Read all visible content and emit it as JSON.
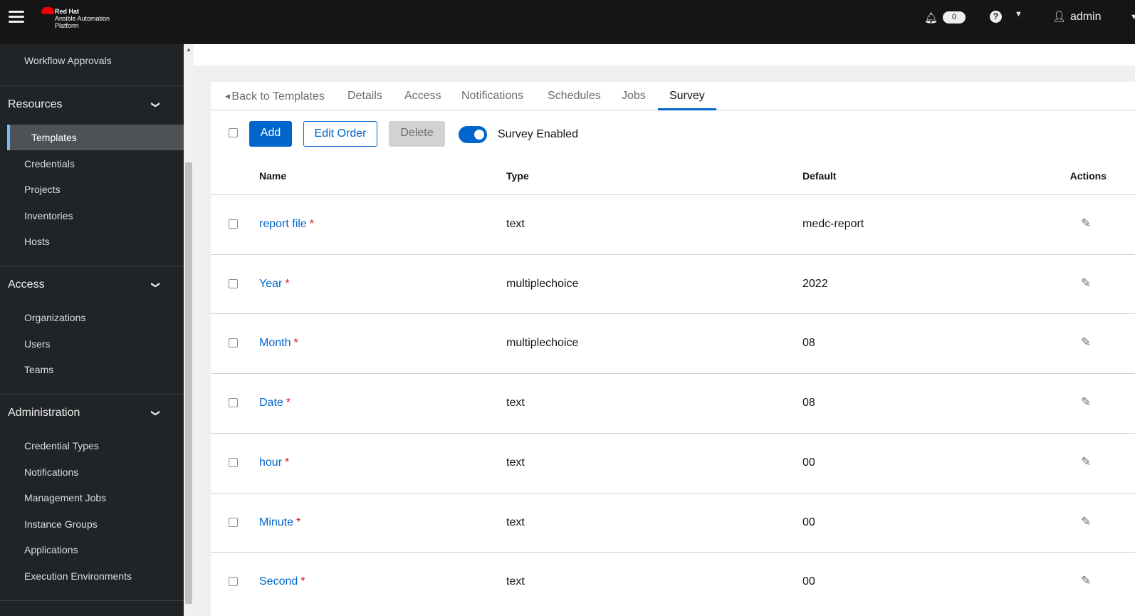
{
  "header": {
    "brand_line1": "Red Hat",
    "brand_line2": "Ansible Automation Platform",
    "notifications_count": "0",
    "user": "admin"
  },
  "sidebar": {
    "top_item": "Workflow Approvals",
    "groups": [
      {
        "label": "Resources",
        "items": [
          "Templates",
          "Credentials",
          "Projects",
          "Inventories",
          "Hosts"
        ]
      },
      {
        "label": "Access",
        "items": [
          "Organizations",
          "Users",
          "Teams"
        ]
      },
      {
        "label": "Administration",
        "items": [
          "Credential Types",
          "Notifications",
          "Management Jobs",
          "Instance Groups",
          "Applications",
          "Execution Environments"
        ]
      }
    ],
    "active": "Templates"
  },
  "tabs": [
    "Back to Templates",
    "Details",
    "Access",
    "Notifications",
    "Schedules",
    "Jobs",
    "Survey"
  ],
  "active_tab": "Survey",
  "toolbar": {
    "add": "Add",
    "edit_order": "Edit Order",
    "delete": "Delete",
    "survey_enabled_label": "Survey Enabled",
    "survey_enabled": true
  },
  "table": {
    "columns": [
      "Name",
      "Type",
      "Default",
      "Actions"
    ],
    "rows": [
      {
        "name": "report file",
        "type": "text",
        "default": "medc-report",
        "required": true
      },
      {
        "name": "Year",
        "type": "multiplechoice",
        "default": "2022",
        "required": true
      },
      {
        "name": "Month",
        "type": "multiplechoice",
        "default": "08",
        "required": true
      },
      {
        "name": "Date",
        "type": "text",
        "default": "08",
        "required": true
      },
      {
        "name": "hour",
        "type": "text",
        "default": "00",
        "required": true
      },
      {
        "name": "Minute",
        "type": "text",
        "default": "00",
        "required": true
      },
      {
        "name": "Second",
        "type": "text",
        "default": "00",
        "required": true
      }
    ]
  },
  "colors": {
    "accent": "#0066cc",
    "header_bg": "#151515",
    "sidebar_bg": "#212427",
    "required": "#c9190b"
  }
}
